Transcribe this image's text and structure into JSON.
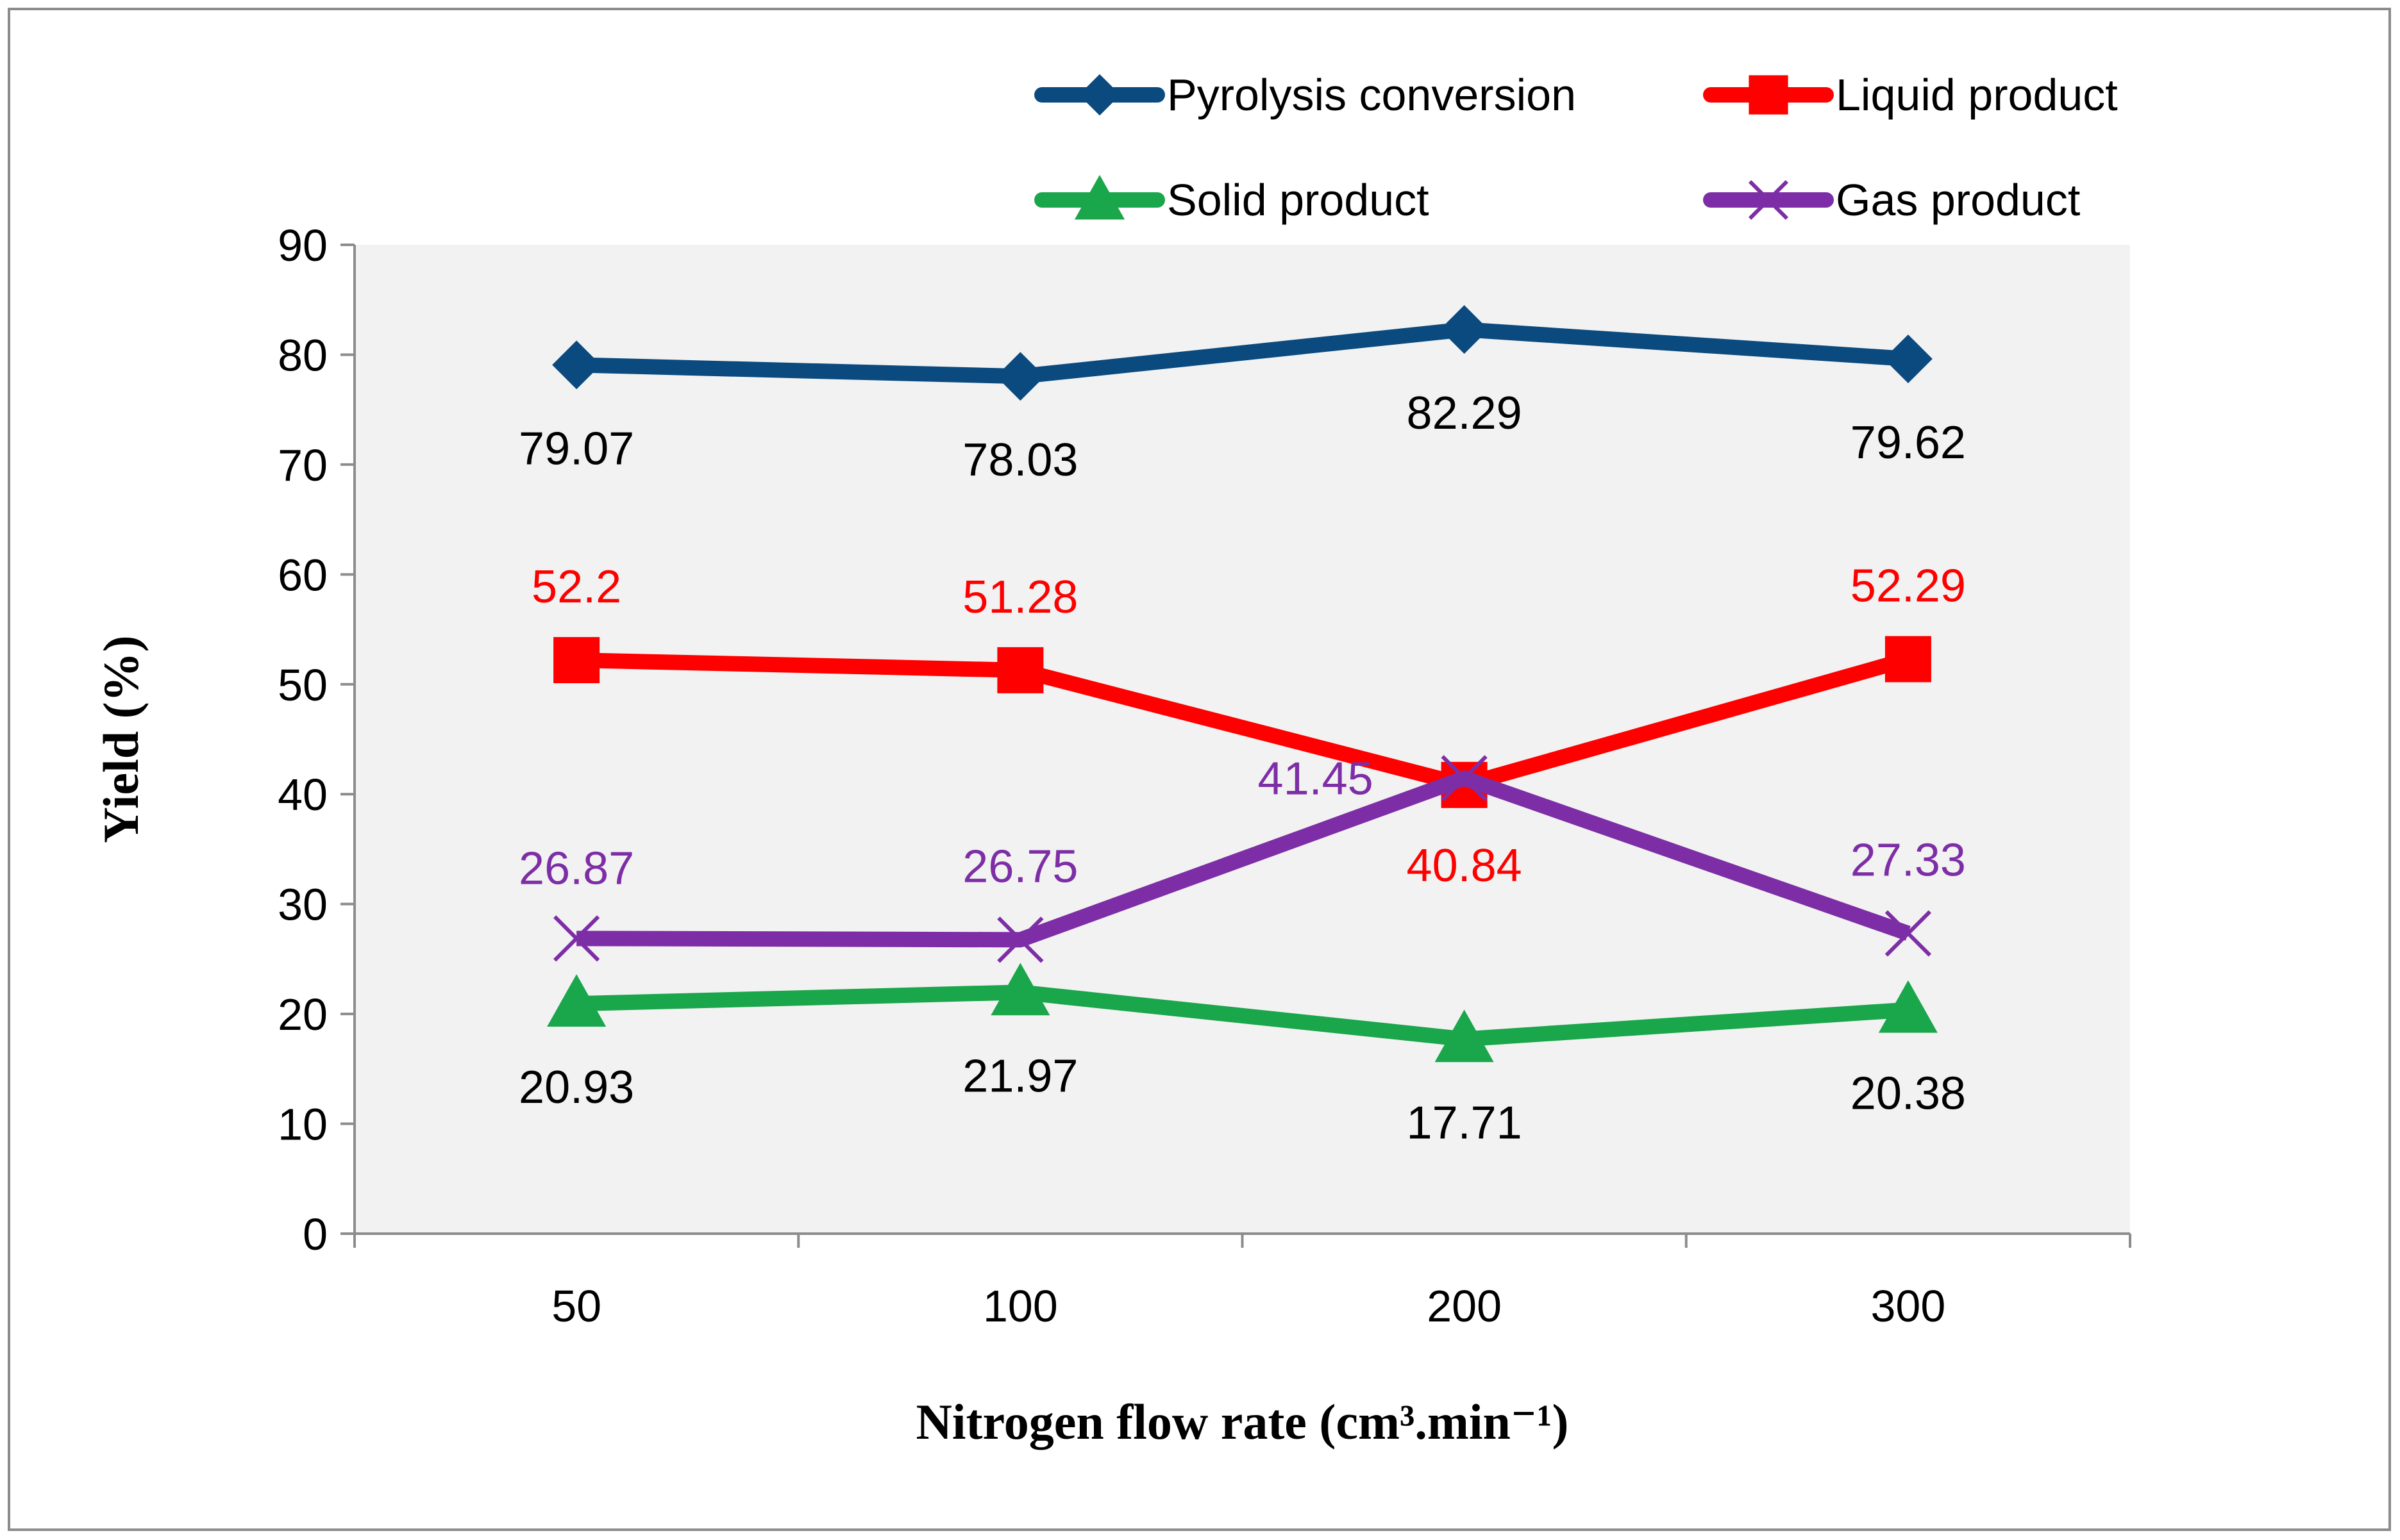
{
  "chart_data": {
    "type": "line",
    "title": "",
    "xlabel": "Nitrogen flow rate (cm³.min⁻¹)",
    "ylabel": "Yield  (%)",
    "categories": [
      "50",
      "100",
      "200",
      "300"
    ],
    "ylim": [
      0,
      90
    ],
    "yticks": [
      0,
      10,
      20,
      30,
      40,
      50,
      60,
      70,
      80,
      90
    ],
    "ytick_labels": [
      "0",
      "10",
      "20",
      "30",
      "40",
      "50",
      "60",
      "70",
      "80",
      "90"
    ],
    "grid": false,
    "plot_background": "#f2f2f2",
    "legend_position": "top",
    "series": [
      {
        "name": "Pyrolysis conversion",
        "color": "#0b4a7f",
        "label_color": "#000000",
        "marker": "diamond",
        "values": [
          79.07,
          78.03,
          82.29,
          79.62
        ],
        "labels": [
          "79.07",
          "78.03",
          "82.29",
          "79.62"
        ],
        "label_position": "below"
      },
      {
        "name": "Liquid product",
        "color": "#ff0000",
        "label_color": "#ff0000",
        "marker": "square",
        "values": [
          52.2,
          51.28,
          40.84,
          52.29
        ],
        "labels": [
          "52.2",
          "51.28",
          "40.84",
          "52.29"
        ],
        "label_position": "above"
      },
      {
        "name": "Solid product",
        "color": "#1aa64a",
        "label_color": "#000000",
        "marker": "triangle",
        "values": [
          20.93,
          21.97,
          17.71,
          20.38
        ],
        "labels": [
          "20.93",
          "21.97",
          "17.71",
          "20.38"
        ],
        "label_position": "below"
      },
      {
        "name": "Gas product",
        "color": "#7d2ea6",
        "label_color": "#7d2ea6",
        "marker": "x",
        "values": [
          26.87,
          26.75,
          41.45,
          27.33
        ],
        "labels": [
          "26.87",
          "26.75",
          "41.45",
          "27.33"
        ],
        "label_position": "above"
      }
    ]
  }
}
